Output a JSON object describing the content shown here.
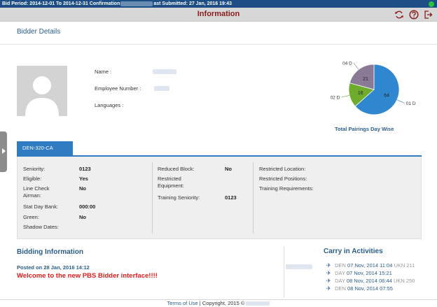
{
  "topbar": {
    "bid_period_label": "Bid Period:",
    "bid_period_value": "2014-12-01 To 2014-12-31",
    "confirmation_label": "Confirmation",
    "last_submitted_label": "ast Submitted:",
    "last_submitted_value": "27 Jan, 2016 19:43",
    "status_color": "#29c33b"
  },
  "header": {
    "title": "Information",
    "icons": [
      "refresh-icon",
      "help-icon",
      "logout-icon"
    ],
    "accent": "#8a1c1c"
  },
  "bidder": {
    "heading": "Bidder Details",
    "name_label": "Name :",
    "employee_number_label": "Employee Number :",
    "languages_label": "Languages :"
  },
  "chart_data": {
    "type": "pie",
    "title": "Total Pairings Day Wise",
    "slices": [
      {
        "label": "01 D",
        "value": 64,
        "color": "#2f88cf"
      },
      {
        "label": "02 D",
        "value": 16,
        "color": "#6fab2c"
      },
      {
        "label": "04 D",
        "value": 21,
        "color": "#8a7a96"
      }
    ]
  },
  "tab": {
    "label": "DEN-320-CA"
  },
  "details": {
    "left": [
      {
        "label": "Seniority:",
        "value": "0123"
      },
      {
        "label": "Eligible:",
        "value": "Yes"
      },
      {
        "label": "Line Check Airman:",
        "value": "No"
      },
      {
        "label": "Stat Day Bank:",
        "value": "000:00"
      },
      {
        "label": "Green:",
        "value": "No"
      },
      {
        "label": "Shadow Dates:",
        "value": ""
      }
    ],
    "middle": [
      {
        "label": "Reduced Block:",
        "value": "No"
      },
      {
        "label": "Restricted Equipment:",
        "value": ""
      },
      {
        "label": "Training Seniority:",
        "value": "0123"
      }
    ],
    "right": [
      {
        "label": "Restricted Location:"
      },
      {
        "label": "Restricted Positions:"
      },
      {
        "label": "Training Requirements:"
      }
    ]
  },
  "bidding": {
    "title": "Bidding Information",
    "posted": "Posted on 28 Jan, 2016 14:12",
    "message": "Welcome to the new PBS Bidder interface!!!!"
  },
  "carry": {
    "title": "Carry in Activities",
    "rows": [
      {
        "code": "DEN",
        "date": "07 Nov, 2014 11:04",
        "extra": "UKN 211"
      },
      {
        "code": "DAY",
        "date": "07 Nov, 2014 15:21",
        "extra": ""
      },
      {
        "code": "DAY",
        "date": "08 Nov, 2014 06:44",
        "extra": "UKN 250"
      },
      {
        "code": "DEN",
        "date": "08 Nov, 2014 07:55",
        "extra": ""
      }
    ]
  },
  "footer": {
    "terms_label": "Terms of Use",
    "copyright": "| Copyright, 2015 ©"
  }
}
